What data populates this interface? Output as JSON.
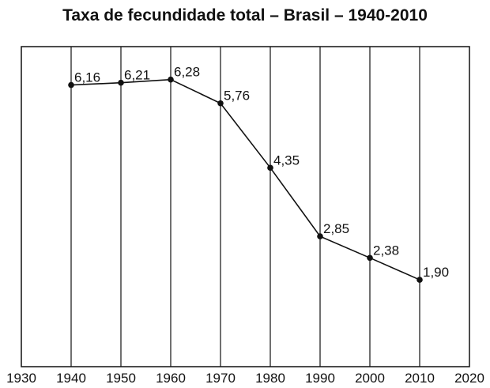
{
  "chart_data": {
    "type": "line",
    "title": "Taxa de fecundidade total – Brasil – 1940-2010",
    "xlabel": "",
    "ylabel": "",
    "xlim": [
      1930,
      2020
    ],
    "ylim": [
      0,
      7
    ],
    "x_ticks": [
      "1930",
      "1940",
      "1950",
      "1960",
      "1970",
      "1980",
      "1990",
      "2000",
      "2010",
      "2020"
    ],
    "grid": "vertical",
    "series": [
      {
        "x": [
          1940,
          1950,
          1960,
          1970,
          1980,
          1990,
          2000,
          2010
        ],
        "values": [
          6.16,
          6.21,
          6.28,
          5.76,
          4.35,
          2.85,
          2.38,
          1.9
        ],
        "labels": [
          "6,16",
          "6,21",
          "6,28",
          "5,76",
          "4,35",
          "2,85",
          "2,38",
          "1,90"
        ]
      }
    ],
    "colors": {
      "line": "#111111",
      "grid": "#111111"
    }
  }
}
